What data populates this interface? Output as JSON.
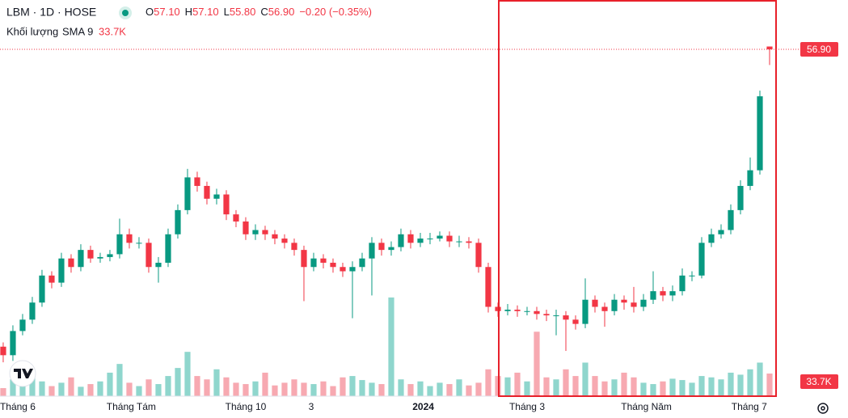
{
  "chart_data": {
    "type": "candlestick",
    "title": "LBM · 1D · HOSE",
    "ohlc_labels": [
      {
        "key": "O",
        "text": "57.10"
      },
      {
        "key": "H",
        "text": "57.10"
      },
      {
        "key": "L",
        "text": "55.80"
      },
      {
        "key": "C",
        "text": "56.90"
      }
    ],
    "change_label": "−0.20 (−0.35%)",
    "volume_legend": {
      "name": "Khối lượng",
      "indicator": "SMA 9",
      "value_label": "33.7K"
    },
    "last_price_label": "56.90",
    "up_color": "#089981",
    "down_color": "#f23645",
    "up_volume_color": "#8fd6cd",
    "down_volume_color": "#f7a9b1",
    "grid": false,
    "xlim": [
      -0.33,
      79.5
    ],
    "xticks": [
      {
        "value": 1.5,
        "label": "Tháng 6"
      },
      {
        "value": 13.2,
        "label": "Tháng Tám"
      },
      {
        "value": 25,
        "label": "Tháng 10"
      },
      {
        "value": 31.75,
        "label": "3"
      },
      {
        "value": 43.3,
        "label": "2024"
      },
      {
        "value": 54,
        "label": "Tháng 3"
      },
      {
        "value": 66.3,
        "label": "Tháng Năm"
      },
      {
        "value": 76.9,
        "label": "Tháng 7"
      }
    ],
    "ylim": [
      32.52,
      60.37
    ],
    "y2lim": [
      0,
      590000
    ],
    "open": [
      36.0,
      35.4,
      37.1,
      37.9,
      39.1,
      41.0,
      40.5,
      42.2,
      41.6,
      42.8,
      42.2,
      42.3,
      42.5,
      43.9,
      43.3,
      43.3,
      41.6,
      41.9,
      43.9,
      45.6,
      47.9,
      47.3,
      46.4,
      46.7,
      45.3,
      44.8,
      43.9,
      44.2,
      43.9,
      43.6,
      43.3,
      42.8,
      41.6,
      42.2,
      41.9,
      41.6,
      41.3,
      41.6,
      42.2,
      43.3,
      42.8,
      43.0,
      43.9,
      43.3,
      43.6,
      43.6,
      43.8,
      43.4,
      43.4,
      43.3,
      41.6,
      38.8,
      38.5,
      38.6,
      38.5,
      38.5,
      38.3,
      38.2,
      38.2,
      37.9,
      37.6,
      39.3,
      38.8,
      38.5,
      39.3,
      39.1,
      38.8,
      39.3,
      39.9,
      39.6,
      39.9,
      41.0,
      41.0,
      43.3,
      43.9,
      44.2,
      45.6,
      47.3,
      48.4,
      57.1
    ],
    "high": [
      36.3,
      37.5,
      38.3,
      39.5,
      41.4,
      41.3,
      42.6,
      42.5,
      43.2,
      43.1,
      42.6,
      42.8,
      45.0,
      44.3,
      43.7,
      43.6,
      42.3,
      44.3,
      46.0,
      48.5,
      48.3,
      47.6,
      47.1,
      47.0,
      45.6,
      45.1,
      44.6,
      44.5,
      44.2,
      43.9,
      43.6,
      43.1,
      42.6,
      42.5,
      42.2,
      41.9,
      42.0,
      42.6,
      43.7,
      43.6,
      43.4,
      44.3,
      44.2,
      44.0,
      44.0,
      44.1,
      44.1,
      43.8,
      43.7,
      43.6,
      41.9,
      39.1,
      39.0,
      38.9,
      38.8,
      38.8,
      38.6,
      38.6,
      38.5,
      38.2,
      40.8,
      39.6,
      39.1,
      39.7,
      39.6,
      40.2,
      39.7,
      41.3,
      40.2,
      40.3,
      41.5,
      41.3,
      43.7,
      44.3,
      44.6,
      46.0,
      47.7,
      49.3,
      54.0,
      57.1
    ],
    "low": [
      34.9,
      35.0,
      36.8,
      37.6,
      38.8,
      40.1,
      40.2,
      41.2,
      41.3,
      41.9,
      41.9,
      42.0,
      42.2,
      42.9,
      42.9,
      41.2,
      40.5,
      41.6,
      43.6,
      45.3,
      46.9,
      46.0,
      46.0,
      44.9,
      44.4,
      43.5,
      43.5,
      43.5,
      43.2,
      42.9,
      42.4,
      39.2,
      41.3,
      41.5,
      41.2,
      40.9,
      38.0,
      41.3,
      39.6,
      42.4,
      42.4,
      42.7,
      42.9,
      43.0,
      43.2,
      43.4,
      43.0,
      43.0,
      42.9,
      41.2,
      38.4,
      38.1,
      38.2,
      38.1,
      38.2,
      37.9,
      37.8,
      36.8,
      35.7,
      37.2,
      37.3,
      38.4,
      37.4,
      38.2,
      38.6,
      38.4,
      38.5,
      39.0,
      39.2,
      39.2,
      39.6,
      40.6,
      40.8,
      43.0,
      43.6,
      43.9,
      45.3,
      47.0,
      48.1,
      55.8
    ],
    "close": [
      35.4,
      37.1,
      37.9,
      39.1,
      41.0,
      40.5,
      42.2,
      41.6,
      42.8,
      42.2,
      42.3,
      42.5,
      43.9,
      43.3,
      43.3,
      41.6,
      41.9,
      43.9,
      45.6,
      47.9,
      47.3,
      46.4,
      46.7,
      45.3,
      44.8,
      43.9,
      44.2,
      43.9,
      43.6,
      43.3,
      42.8,
      41.6,
      42.2,
      41.9,
      41.6,
      41.3,
      41.6,
      42.2,
      43.3,
      42.8,
      43.0,
      43.9,
      43.3,
      43.6,
      43.6,
      43.8,
      43.4,
      43.4,
      43.3,
      41.6,
      38.8,
      38.5,
      38.6,
      38.5,
      38.5,
      38.3,
      38.2,
      38.2,
      37.9,
      37.6,
      39.3,
      38.8,
      38.5,
      39.3,
      39.1,
      38.8,
      39.3,
      39.9,
      39.6,
      39.9,
      41.0,
      41.0,
      43.3,
      43.9,
      44.2,
      45.6,
      47.3,
      48.4,
      53.6,
      56.9
    ],
    "volume": [
      12000,
      25000,
      18000,
      30000,
      22000,
      15000,
      20000,
      28000,
      14000,
      18000,
      22000,
      35000,
      48000,
      20000,
      15000,
      25000,
      18000,
      30000,
      42000,
      66000,
      30000,
      25000,
      40000,
      28000,
      20000,
      18000,
      22000,
      35000,
      16000,
      20000,
      25000,
      20000,
      18000,
      22000,
      15000,
      28000,
      30000,
      24000,
      20000,
      18000,
      147000,
      25000,
      18000,
      22000,
      15000,
      20000,
      18000,
      25000,
      16000,
      20000,
      40000,
      30000,
      28000,
      35000,
      22000,
      96000,
      28000,
      25000,
      40000,
      30000,
      50000,
      30000,
      22000,
      25000,
      35000,
      28000,
      20000,
      18000,
      22000,
      26000,
      24000,
      20000,
      30000,
      28000,
      25000,
      35000,
      32000,
      40000,
      50000,
      33700
    ]
  }
}
